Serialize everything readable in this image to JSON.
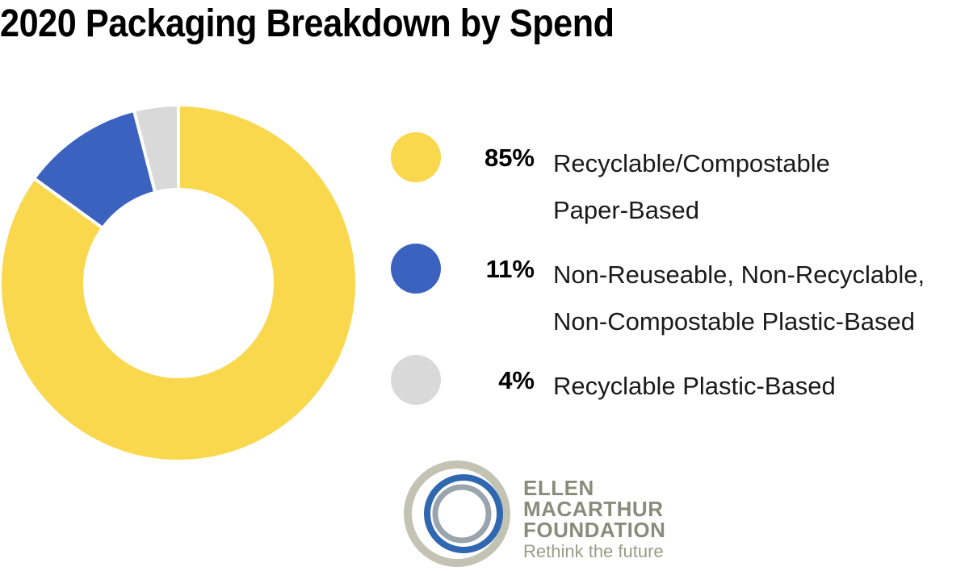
{
  "chart_data": {
    "type": "pie",
    "title": "2020 Packaging Breakdown by Spend",
    "slices": [
      {
        "value": 85,
        "percent_label": "85%",
        "label_lines": [
          "Recyclable/Compostable",
          "Paper-Based"
        ],
        "color": "#f9d84d"
      },
      {
        "value": 11,
        "percent_label": "11%",
        "label_lines": [
          "Non-Reuseable, Non-Recyclable,",
          "Non-Compostable Plastic-Based"
        ],
        "color": "#3b62bf"
      },
      {
        "value": 4,
        "percent_label": "4%",
        "label_lines": [
          "Recyclable Plastic-Based"
        ],
        "color": "#d9d9d9"
      }
    ],
    "legend_position": "right",
    "donut": true
  },
  "logo": {
    "lines": [
      "ELLEN",
      "MACARTHUR",
      "FOUNDATION"
    ],
    "tagline": "Rethink the future",
    "colors": {
      "outer": "#c2c3b3",
      "blue": "#2f67b0",
      "grey": "#8a8c7b",
      "inner": "#9aa4ad"
    }
  }
}
